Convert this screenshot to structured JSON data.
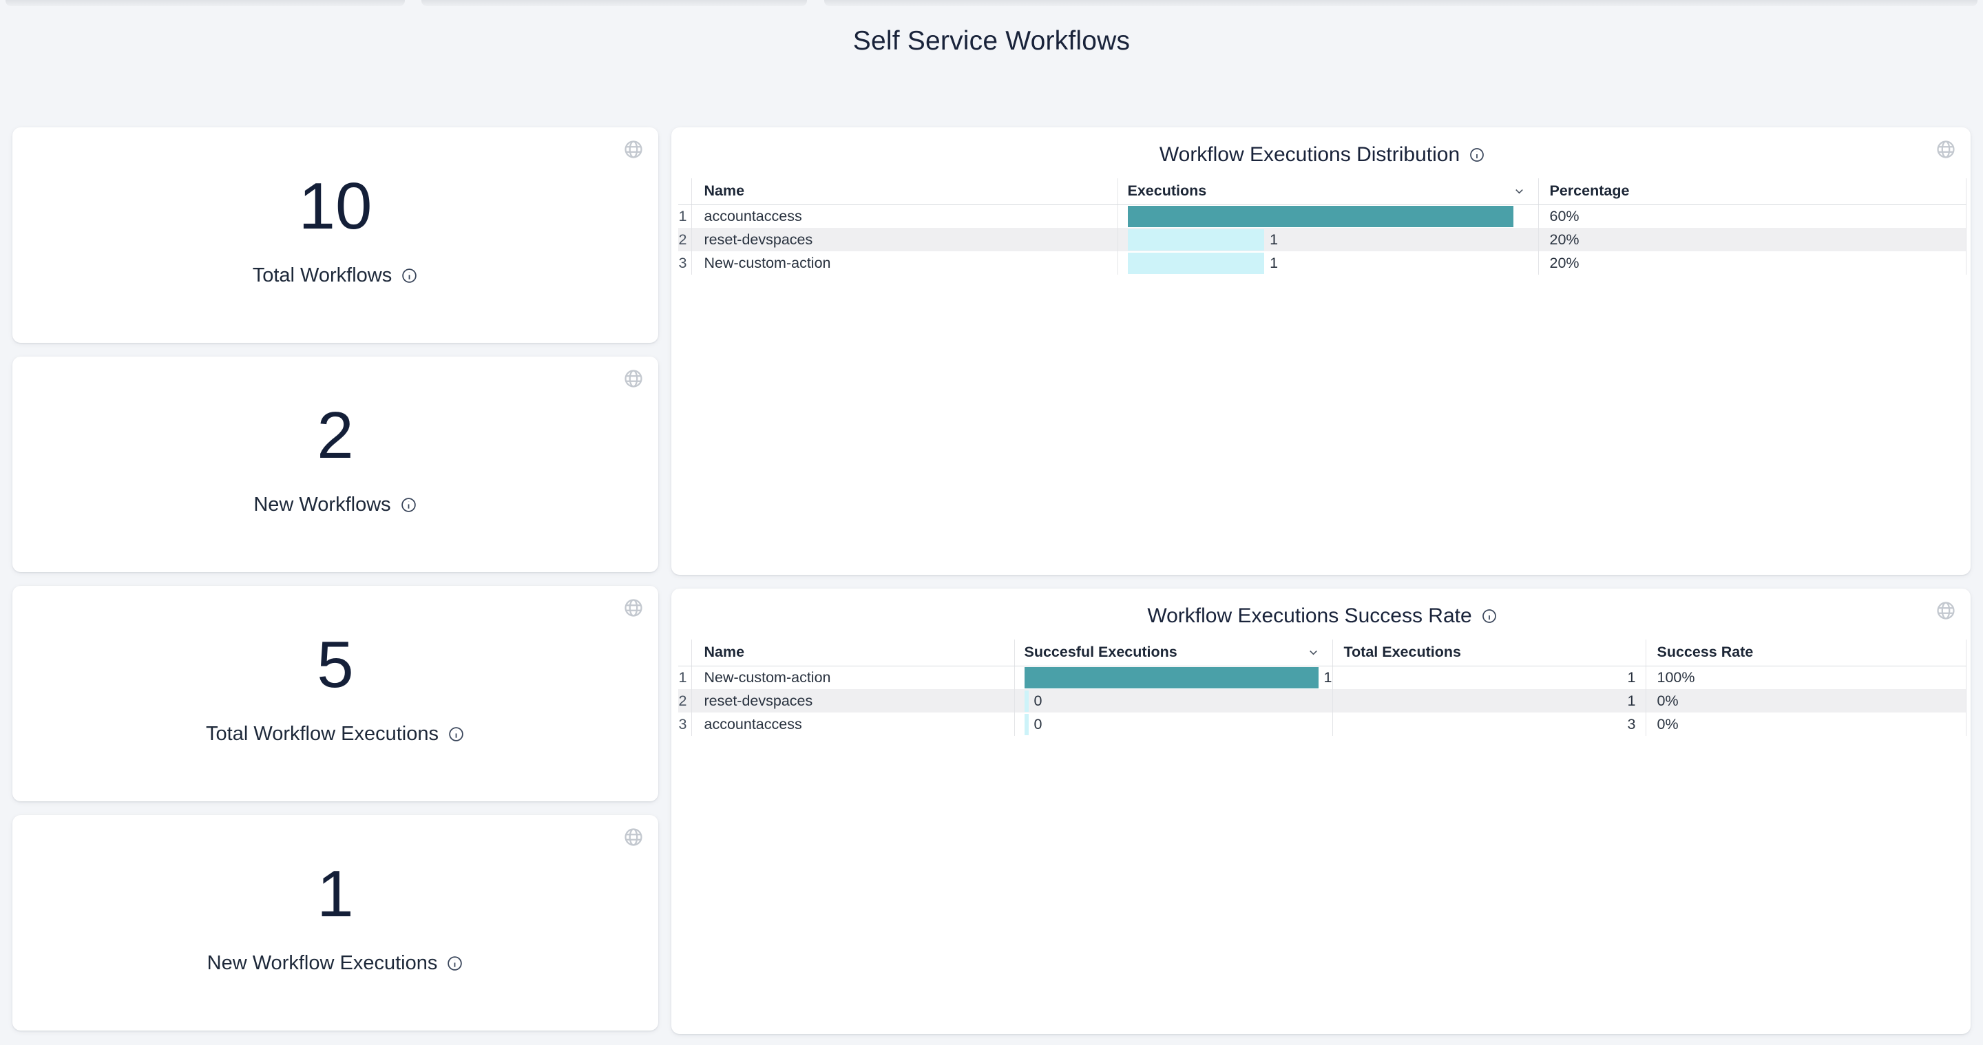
{
  "page": {
    "title": "Self Service Workflows"
  },
  "stat_cards": [
    {
      "value": "10",
      "label": "Total Workflows"
    },
    {
      "value": "2",
      "label": "New Workflows"
    },
    {
      "value": "5",
      "label": "Total Workflow Executions"
    },
    {
      "value": "1",
      "label": "New Workflow Executions"
    }
  ],
  "distribution": {
    "title": "Workflow Executions Distribution",
    "headers": {
      "name": "Name",
      "executions": "Executions",
      "percentage": "Percentage"
    },
    "sort": {
      "column": "Executions",
      "direction": "descending"
    },
    "max_executions": 3,
    "rows": [
      {
        "num": "1",
        "name": "accountaccess",
        "executions": 3,
        "percentage": "60%"
      },
      {
        "num": "2",
        "name": "reset-devspaces",
        "executions": 1,
        "percentage": "20%"
      },
      {
        "num": "3",
        "name": "New-custom-action",
        "executions": 1,
        "percentage": "20%"
      }
    ]
  },
  "success": {
    "title": "Workflow Executions Success Rate",
    "headers": {
      "name": "Name",
      "successful": "Succesful Executions",
      "total": "Total Executions",
      "rate": "Success Rate"
    },
    "sort": {
      "column": "Succesful Executions",
      "direction": "descending"
    },
    "max_successful": 1,
    "rows": [
      {
        "num": "1",
        "name": "New-custom-action",
        "successful": 1,
        "total": 1,
        "rate": "100%"
      },
      {
        "num": "2",
        "name": "reset-devspaces",
        "successful": 0,
        "total": 1,
        "rate": "0%"
      },
      {
        "num": "3",
        "name": "accountaccess",
        "successful": 0,
        "total": 3,
        "rate": "0%"
      }
    ]
  },
  "colors": {
    "bar_primary": "#4AA0A8",
    "bar_secondary": "#CDF3F9",
    "heading_text": "#19233A",
    "zebra_row": "#EFEFF1",
    "page_background": "#F3F5F8"
  }
}
